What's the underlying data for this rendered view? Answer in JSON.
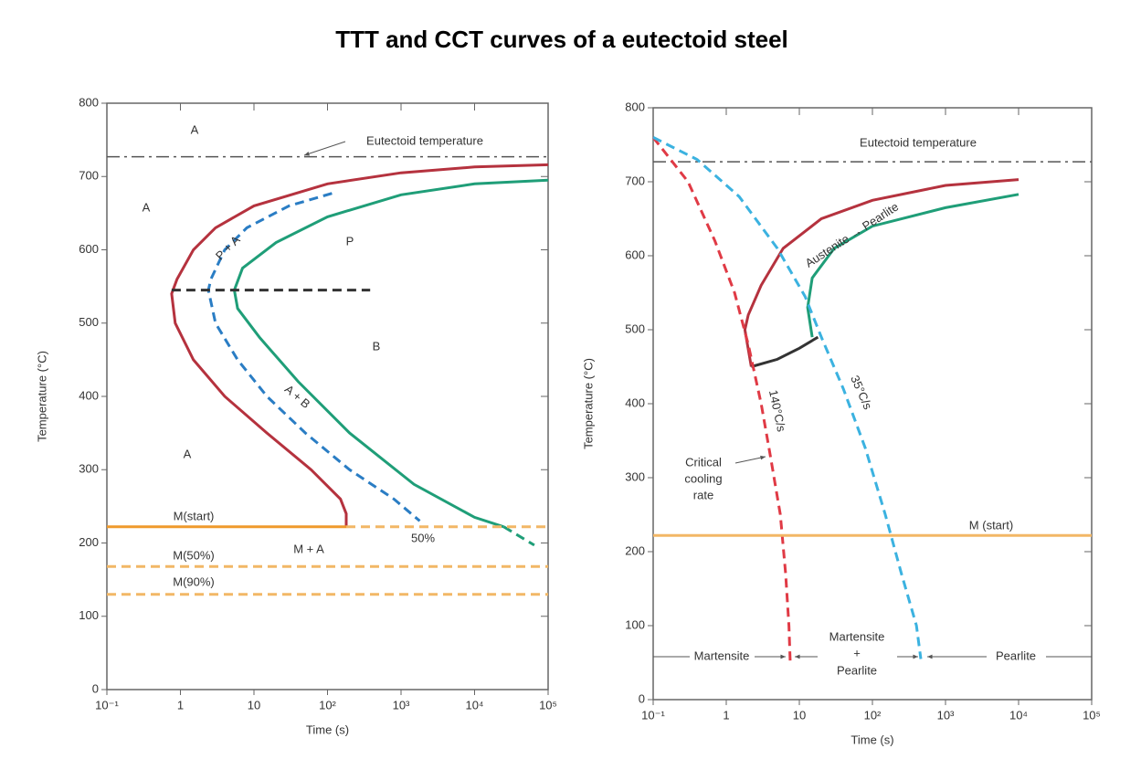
{
  "title": "TTT and CCT curves of a eutectoid steel",
  "chart_data": [
    {
      "type": "line",
      "xlabel": "Time (s)",
      "ylabel": "Temperature (°C)",
      "xscale": "log",
      "xlim": [
        0.1,
        100000
      ],
      "ylim": [
        0,
        800
      ],
      "xticks": [
        {
          "value": 0.1,
          "label": "10⁻¹"
        },
        1,
        10,
        {
          "value": 100,
          "label": "10²"
        },
        {
          "value": 1000,
          "label": "10³"
        },
        {
          "value": 10000,
          "label": "10⁴"
        },
        {
          "value": 100000,
          "label": "10⁵"
        }
      ],
      "yticks": [
        0,
        100,
        200,
        300,
        400,
        500,
        600,
        700,
        800
      ],
      "series": [
        {
          "color": "#555555",
          "dash": "dashdot",
          "x": [
            0.1,
            100000
          ],
          "values": [
            727,
            727
          ]
        },
        {
          "color": "#b5323e",
          "dash": "solid",
          "x": [
            100000,
            10000,
            1000,
            100,
            10,
            3,
            1.5,
            0.9,
            0.76,
            0.85,
            1.5,
            4,
            15,
            60,
            150,
            180,
            180
          ],
          "values": [
            716,
            713,
            705,
            690,
            660,
            630,
            600,
            560,
            540,
            500,
            450,
            400,
            350,
            300,
            260,
            240,
            222
          ]
        },
        {
          "color": "#2a7dc4",
          "dash": "dashed",
          "x": [
            115,
            30,
            8,
            4,
            2.6,
            2.4,
            3,
            6,
            15,
            50,
            200,
            800,
            1800
          ],
          "values": [
            677,
            660,
            630,
            600,
            560,
            545,
            500,
            450,
            400,
            350,
            300,
            260,
            230
          ]
        },
        {
          "color": "#1f9e78",
          "dash": "solid",
          "x": [
            100000,
            10000,
            1000,
            100,
            20,
            7,
            5.4,
            6,
            12,
            40,
            200,
            1500,
            10000,
            25000
          ],
          "values": [
            695,
            690,
            675,
            645,
            610,
            575,
            545,
            520,
            480,
            420,
            350,
            280,
            235,
            222
          ]
        },
        {
          "color": "#1f9e78",
          "dash": "dashed",
          "x": [
            25000,
            65000
          ],
          "values": [
            222,
            197
          ]
        },
        {
          "color": "#333333",
          "dash": "dashed",
          "x": [
            0.76,
            380
          ],
          "values": [
            545,
            545
          ]
        },
        {
          "color": "#ef9a2c",
          "dash": "solid",
          "x": [
            0.1,
            180
          ],
          "values": [
            222,
            222
          ]
        },
        {
          "color": "#f2b766",
          "dash": "dashed",
          "x": [
            180,
            100000
          ],
          "values": [
            222,
            222
          ]
        },
        {
          "color": "#f2b766",
          "dash": "dashed",
          "x": [
            0.1,
            100000
          ],
          "values": [
            168,
            168
          ]
        },
        {
          "color": "#f2b766",
          "dash": "dashed",
          "x": [
            0.1,
            100000
          ],
          "values": [
            130,
            130
          ]
        }
      ],
      "annotations": [
        "A",
        "A",
        "A",
        "P",
        "B",
        "P + A",
        "A + B",
        "M + A",
        "50%",
        "M(start)",
        "M(50%)",
        "M(90%)",
        "Eutectoid temperature"
      ]
    },
    {
      "type": "line",
      "xlabel": "Time (s)",
      "ylabel": "Temperature (°C)",
      "xscale": "log",
      "xlim": [
        0.1,
        100000
      ],
      "ylim": [
        0,
        800
      ],
      "xticks": [
        {
          "value": 0.1,
          "label": "10⁻¹"
        },
        1,
        10,
        {
          "value": 100,
          "label": "10²"
        },
        {
          "value": 1000,
          "label": "10³"
        },
        {
          "value": 10000,
          "label": "10⁴"
        },
        {
          "value": 100000,
          "label": "10⁵"
        }
      ],
      "yticks": [
        0,
        100,
        200,
        300,
        400,
        500,
        600,
        700,
        800
      ],
      "series": [
        {
          "color": "#555555",
          "dash": "dashdot",
          "x": [
            0.1,
            100000
          ],
          "values": [
            727,
            727
          ]
        },
        {
          "color": "#b5323e",
          "dash": "solid",
          "x": [
            10000,
            1000,
            100,
            20,
            6,
            3,
            2,
            1.8,
            2.2
          ],
          "values": [
            703,
            695,
            675,
            650,
            610,
            560,
            520,
            500,
            450
          ]
        },
        {
          "color": "#1f9e78",
          "dash": "solid",
          "x": [
            10000,
            1000,
            100,
            30,
            15,
            13,
            15
          ],
          "values": [
            683,
            665,
            640,
            610,
            570,
            530,
            490
          ]
        },
        {
          "color": "#333333",
          "dash": "solid",
          "x": [
            2.2,
            5,
            10,
            18
          ],
          "values": [
            450,
            460,
            475,
            490
          ]
        },
        {
          "color": "#e03a45",
          "dash": "dashed",
          "x": [
            0.1,
            0.3,
            0.7,
            1.3,
            2,
            3,
            4,
            5.5,
            6.5,
            7.2,
            7.5
          ],
          "values": [
            760,
            700,
            620,
            550,
            480,
            400,
            330,
            250,
            170,
            100,
            51
          ]
        },
        {
          "color": "#3bb2e0",
          "dash": "dashed",
          "x": [
            0.1,
            0.4,
            1.5,
            5,
            12,
            20,
            40,
            80,
            150,
            250,
            400,
            460
          ],
          "values": [
            760,
            730,
            680,
            610,
            545,
            490,
            420,
            340,
            250,
            170,
            100,
            55
          ]
        },
        {
          "color": "#f2b766",
          "dash": "solid",
          "x": [
            0.1,
            100000
          ],
          "values": [
            222,
            222
          ]
        }
      ],
      "annotations": [
        "Eutectoid temperature",
        "Austenite → Pearlite",
        "140°C/s",
        "35°C/s",
        "Critical",
        "cooling",
        "rate",
        "M (start)",
        "Martensite",
        "Martensite",
        "+",
        "Pearlite",
        "Pearlite"
      ]
    }
  ]
}
